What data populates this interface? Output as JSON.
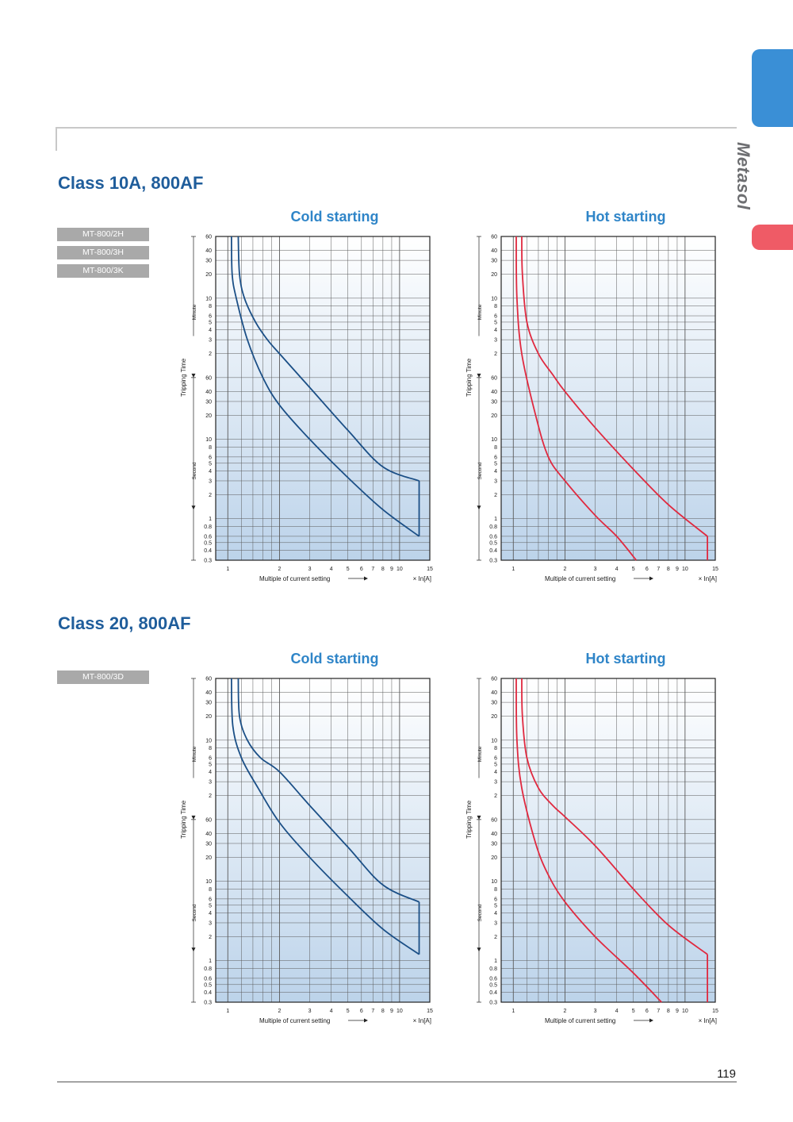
{
  "brand": {
    "name": "Metasol",
    "accent_color": "#3a8fd6",
    "secondary_color": "#ef5b66"
  },
  "sections": [
    {
      "title": "Class 10A, 800AF",
      "models": [
        "MT-800/2H",
        "MT-800/3H",
        "MT-800/3K"
      ]
    },
    {
      "title": "Class 20, 800AF",
      "models": [
        "MT-800/3D"
      ]
    }
  ],
  "axes": {
    "ylabel": "Tripping Time",
    "y_group_minute": "Minute",
    "y_group_second": "Second",
    "minute_ticks": [
      "60",
      "40",
      "30",
      "20",
      "10",
      "8",
      "6",
      "5",
      "4",
      "3",
      "2"
    ],
    "second_ticks": [
      "60",
      "40",
      "30",
      "20",
      "10",
      "8",
      "6",
      "5",
      "4",
      "3",
      "2",
      "1",
      "0.8",
      "0.6",
      "0.5",
      "0.4",
      "0.3"
    ],
    "x_ticks": [
      "1",
      "2",
      "3",
      "4",
      "5",
      "6",
      "7",
      "8",
      "9",
      "10",
      "15"
    ],
    "xlabel": "Multiple of current setting",
    "xunit": "× In[A]"
  },
  "chart_data": [
    {
      "type": "line",
      "title": "Cold starting",
      "section": "Class 10A, 800AF",
      "color": "#1b4f86",
      "xlim": [
        0.85,
        15
      ],
      "ylim_seconds": [
        0.3,
        3600
      ],
      "y_scale": "log",
      "x_scale": "log",
      "grid": true,
      "series": [
        {
          "curve": "upper",
          "points": [
            [
              1.15,
              3600
            ],
            [
              1.17,
              1200
            ],
            [
              1.25,
              600
            ],
            [
              1.45,
              300
            ],
            [
              1.7,
              180
            ],
            [
              2.0,
              120
            ],
            [
              3.0,
              45
            ],
            [
              5.0,
              13
            ],
            [
              8.0,
              4.5
            ],
            [
              13.0,
              3
            ]
          ]
        },
        {
          "curve": "lower",
          "points": [
            [
              1.05,
              3600
            ],
            [
              1.06,
              1200
            ],
            [
              1.12,
              600
            ],
            [
              1.3,
              180
            ],
            [
              1.6,
              60
            ],
            [
              2.0,
              27
            ],
            [
              3.0,
              10
            ],
            [
              5.0,
              3.3
            ],
            [
              8.0,
              1.3
            ],
            [
              13.0,
              0.6
            ]
          ]
        }
      ],
      "vertical_segment": {
        "x": 13.0,
        "y_from": 0.6,
        "y_to": 3
      }
    },
    {
      "type": "line",
      "title": "Hot starting",
      "section": "Class 10A, 800AF",
      "color": "#e0293f",
      "xlim": [
        0.85,
        15
      ],
      "ylim_seconds": [
        0.3,
        3600
      ],
      "y_scale": "log",
      "x_scale": "log",
      "grid": true,
      "series": [
        {
          "curve": "upper",
          "points": [
            [
              1.12,
              3600
            ],
            [
              1.13,
              1200
            ],
            [
              1.2,
              300
            ],
            [
              1.4,
              120
            ],
            [
              1.7,
              65
            ],
            [
              2.0,
              40
            ],
            [
              3.0,
              14
            ],
            [
              5.0,
              4.2
            ],
            [
              8.0,
              1.5
            ],
            [
              13.5,
              0.6
            ]
          ]
        },
        {
          "curve": "lower",
          "points": [
            [
              1.04,
              3600
            ],
            [
              1.05,
              600
            ],
            [
              1.12,
              120
            ],
            [
              1.35,
              20
            ],
            [
              1.6,
              6
            ],
            [
              2.0,
              3
            ],
            [
              3.0,
              1.1
            ],
            [
              4.0,
              0.6
            ],
            [
              5.2,
              0.3
            ]
          ]
        }
      ],
      "vertical_segment": {
        "x": 13.5,
        "y_from": 0.3,
        "y_to": 0.6
      }
    },
    {
      "type": "line",
      "title": "Cold starting",
      "section": "Class 20, 800AF",
      "color": "#1b4f86",
      "xlim": [
        0.85,
        15
      ],
      "ylim_seconds": [
        0.3,
        3600
      ],
      "y_scale": "log",
      "x_scale": "log",
      "grid": true,
      "series": [
        {
          "curve": "upper",
          "points": [
            [
              1.15,
              3600
            ],
            [
              1.17,
              1200
            ],
            [
              1.3,
              600
            ],
            [
              1.55,
              360
            ],
            [
              2.0,
              240
            ],
            [
              3.0,
              90
            ],
            [
              5.0,
              27
            ],
            [
              8.0,
              9
            ],
            [
              13.0,
              5.5
            ]
          ]
        },
        {
          "curve": "lower",
          "points": [
            [
              1.05,
              3600
            ],
            [
              1.07,
              900
            ],
            [
              1.2,
              360
            ],
            [
              1.5,
              150
            ],
            [
              2.0,
              55
            ],
            [
              3.0,
              20
            ],
            [
              5.0,
              6.5
            ],
            [
              8.0,
              2.5
            ],
            [
              13.0,
              1.2
            ]
          ]
        }
      ],
      "vertical_segment": {
        "x": 13.0,
        "y_from": 1.2,
        "y_to": 5.5
      }
    },
    {
      "type": "line",
      "title": "Hot starting",
      "section": "Class 20, 800AF",
      "color": "#e0293f",
      "xlim": [
        0.85,
        15
      ],
      "ylim_seconds": [
        0.3,
        3600
      ],
      "y_scale": "log",
      "x_scale": "log",
      "grid": true,
      "series": [
        {
          "curve": "upper",
          "points": [
            [
              1.12,
              3600
            ],
            [
              1.13,
              1200
            ],
            [
              1.2,
              360
            ],
            [
              1.4,
              150
            ],
            [
              1.7,
              90
            ],
            [
              2.0,
              65
            ],
            [
              3.0,
              28
            ],
            [
              5.0,
              8
            ],
            [
              8.0,
              2.8
            ],
            [
              13.5,
              1.2
            ]
          ]
        },
        {
          "curve": "lower",
          "points": [
            [
              1.04,
              3600
            ],
            [
              1.05,
              600
            ],
            [
              1.12,
              150
            ],
            [
              1.35,
              30
            ],
            [
              1.6,
              12
            ],
            [
              2.0,
              5.5
            ],
            [
              3.0,
              2
            ],
            [
              5.0,
              0.7
            ],
            [
              7.3,
              0.3
            ]
          ]
        }
      ],
      "vertical_segment": {
        "x": 13.5,
        "y_from": 0.3,
        "y_to": 1.2
      }
    }
  ],
  "page_number": "119"
}
